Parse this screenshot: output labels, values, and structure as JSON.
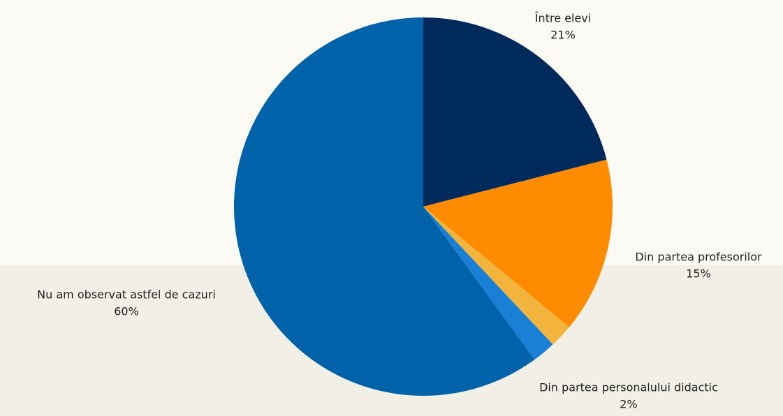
{
  "chart_data": {
    "type": "pie",
    "categories": [
      "Între elevi",
      "Din partea profesorilor",
      null,
      "Din partea personalului didactic",
      "Nu am observat astfel de cazuri"
    ],
    "values": [
      21,
      15,
      2,
      2,
      60
    ],
    "value_labels": [
      "21%",
      "15%",
      null,
      "2%",
      "60%"
    ],
    "colors": [
      "#002a5c",
      "#ff8c00",
      "#f2b43c",
      "#1a80d6",
      "#0062a8"
    ]
  }
}
